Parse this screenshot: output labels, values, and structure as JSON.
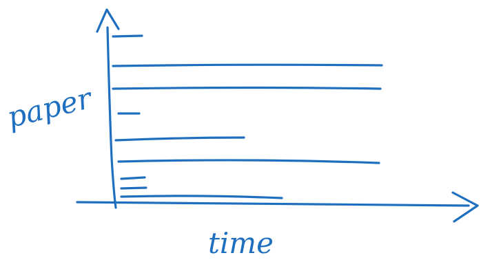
{
  "diagram": {
    "ink_color": "#1f6fc0",
    "background": "#ffffff",
    "y_axis_label": "paper",
    "x_axis_label": "time",
    "y_axis_arrow": "arrowhead-up",
    "x_axis_arrow": "arrowhead-right",
    "bars_from_top": [
      {
        "name": "bar-1",
        "length": "short"
      },
      {
        "name": "bar-2",
        "length": "long"
      },
      {
        "name": "bar-3",
        "length": "long"
      },
      {
        "name": "bar-4",
        "length": "short"
      },
      {
        "name": "bar-5",
        "length": "medium"
      },
      {
        "name": "bar-6",
        "length": "long"
      },
      {
        "name": "bar-7",
        "length": "short"
      },
      {
        "name": "bar-8",
        "length": "short"
      },
      {
        "name": "bar-9",
        "length": "medium"
      }
    ]
  }
}
